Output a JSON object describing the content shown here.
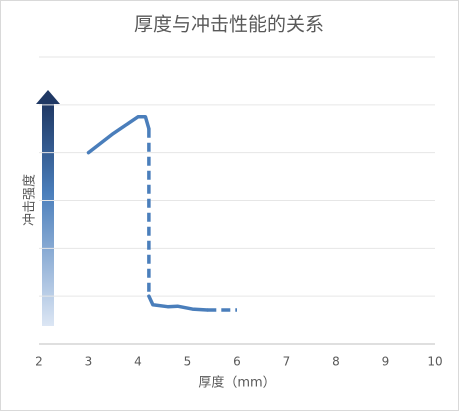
{
  "chart_data": {
    "type": "line",
    "title": "厚度与冲击性能的关系",
    "x_label": "厚度（mm）",
    "y_label": "冲击强度",
    "color": "#4a7ebb",
    "grid": true,
    "xlim": [
      2,
      10
    ],
    "xticks": [
      2,
      3,
      4,
      5,
      6,
      7,
      8,
      9,
      10
    ],
    "ylim": [
      0,
      6
    ],
    "yticks": [
      0,
      1,
      2,
      3,
      4,
      5,
      6
    ],
    "lines": [
      {
        "dashed": false,
        "x": [
          3.0,
          3.5,
          4.0,
          4.15,
          4.22
        ],
        "values": [
          4.0,
          4.4,
          4.75,
          4.75,
          4.5
        ]
      },
      {
        "dashed": true,
        "x": [
          4.22,
          4.22
        ],
        "values": [
          4.5,
          1.0
        ]
      },
      {
        "dashed": false,
        "x": [
          4.22,
          4.3,
          4.6,
          4.8,
          5.1,
          5.4
        ],
        "values": [
          1.0,
          0.82,
          0.78,
          0.79,
          0.73,
          0.71
        ]
      },
      {
        "dashed": true,
        "x": [
          5.4,
          6.0
        ],
        "values": [
          0.71,
          0.71
        ]
      }
    ]
  }
}
